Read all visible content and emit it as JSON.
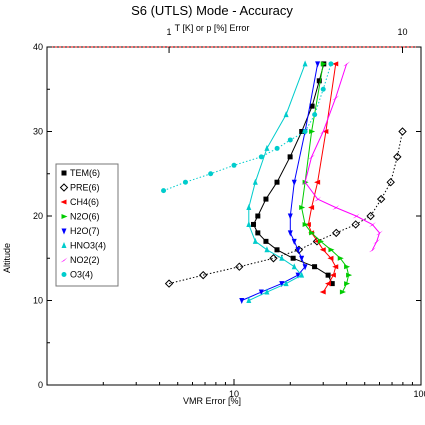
{
  "chart_data": {
    "type": "line",
    "title": "S6 (UTLS) Mode - Accuracy",
    "top_axis_label": "T [K] or p [%] Error",
    "xlabel": "VMR Error [%]",
    "ylabel": "Altitude",
    "x_scale": "log",
    "xlim": [
      1,
      100
    ],
    "ylim": [
      0,
      40
    ],
    "x_ticks": [
      "10",
      "100"
    ],
    "top_x_ticks": [
      "1",
      "10"
    ],
    "top_xlim": [
      0.3,
      12
    ],
    "y_ticks": [
      "0",
      "10",
      "20",
      "30",
      "40"
    ],
    "grid": false,
    "legend_position": "center-left",
    "series": [
      {
        "name": "TEM(6)",
        "color": "#000000",
        "axis": "top",
        "line": "solid",
        "marker": "square",
        "x": [
          5.0,
          4.8,
          4.2,
          3.4,
          2.9,
          2.6,
          2.4,
          2.3,
          2.4,
          2.6,
          2.9,
          3.3,
          3.7,
          4.1,
          4.4,
          4.6
        ],
        "y": [
          12,
          13,
          14,
          15,
          16,
          17,
          18,
          19,
          20,
          22,
          24,
          27,
          30,
          33,
          36,
          38
        ]
      },
      {
        "name": "PRE(6)",
        "color": "#000000",
        "axis": "top",
        "line": "dotted",
        "marker": "diamond-open",
        "x": [
          1.0,
          1.4,
          2.0,
          2.8,
          3.6,
          4.3,
          5.2,
          6.3,
          7.3,
          8.1,
          8.9,
          9.5,
          10.0
        ],
        "y": [
          12,
          13,
          14,
          15,
          16,
          17,
          18,
          19,
          20,
          22,
          24,
          27,
          30
        ]
      },
      {
        "name": "CH4(6)",
        "color": "#ff0000",
        "axis": "bottom",
        "line": "solid",
        "marker": "triangle-left",
        "x": [
          30,
          32,
          34,
          35,
          33,
          30,
          28,
          26,
          25,
          26,
          28,
          31,
          35
        ],
        "y": [
          11,
          12,
          13,
          14,
          15,
          16,
          17,
          18,
          19,
          21,
          24,
          30,
          38
        ]
      },
      {
        "name": "N2O(6)",
        "color": "#00cc00",
        "axis": "bottom",
        "line": "solid",
        "marker": "triangle-right",
        "x": [
          38,
          40,
          41,
          40,
          37,
          33,
          29,
          26,
          24,
          23,
          24,
          26,
          30
        ],
        "y": [
          11,
          12,
          13,
          14,
          15,
          16,
          17,
          18,
          19,
          21,
          24,
          30,
          38
        ]
      },
      {
        "name": "H2O(7)",
        "color": "#0000ff",
        "axis": "bottom",
        "line": "solid",
        "marker": "triangle-down",
        "x": [
          11,
          14,
          18,
          22,
          24,
          23,
          22,
          21,
          20,
          20,
          21,
          24,
          28
        ],
        "y": [
          10,
          11,
          12,
          13,
          14,
          15,
          16,
          17,
          18,
          20,
          24,
          30,
          38
        ]
      },
      {
        "name": "HNO3(4)",
        "color": "#00cccc",
        "axis": "bottom",
        "line": "solid",
        "marker": "triangle-up",
        "x": [
          12,
          15,
          19,
          23,
          21,
          18,
          15,
          13,
          12,
          12,
          13,
          15,
          19,
          24
        ],
        "y": [
          10,
          11,
          12,
          13,
          14,
          15,
          16,
          17,
          19,
          21,
          24,
          28,
          32,
          38
        ]
      },
      {
        "name": "NO2(2)",
        "color": "#ff00ff",
        "axis": "bottom",
        "line": "solid",
        "marker": "star",
        "x": [
          55,
          58,
          60,
          55,
          45,
          35,
          28,
          24,
          26,
          30,
          35,
          40
        ],
        "y": [
          16,
          17,
          18,
          19,
          20,
          21,
          22,
          24,
          27,
          30,
          34,
          38
        ]
      },
      {
        "name": "O3(4)",
        "color": "#00cccc",
        "axis": "bottom",
        "line": "dotted",
        "marker": "circle",
        "x": [
          4.2,
          5.5,
          7.5,
          10,
          14,
          17,
          20,
          24,
          27,
          30,
          33
        ],
        "y": [
          23,
          24,
          25,
          26,
          27,
          28,
          29,
          30,
          32,
          35,
          38
        ]
      }
    ]
  }
}
